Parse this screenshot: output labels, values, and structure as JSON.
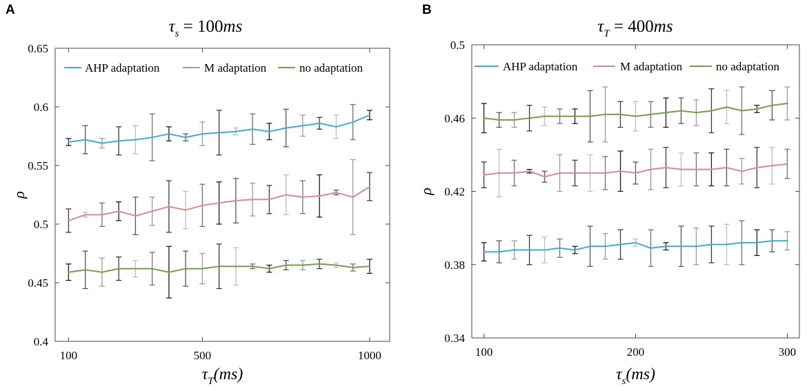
{
  "chart_data": [
    {
      "type": "line",
      "panel_label": "A",
      "title": {
        "main": "τ",
        "sub": "s",
        "rest": " = 100",
        "unit": "ms"
      },
      "xlabel": {
        "main": "τ",
        "sub": "T",
        "rest": "(ms)"
      },
      "ylabel": "ρ",
      "xlim": [
        60,
        1060
      ],
      "ylim": [
        0.4,
        0.65
      ],
      "xticks": [
        100,
        500,
        1000
      ],
      "yticks": [
        0.4,
        0.45,
        0.5,
        0.55,
        0.6,
        0.65
      ],
      "ytick_labels": [
        "0.4",
        "0.45",
        "0.5",
        "0.55",
        "0.6",
        "0.65"
      ],
      "legend": "top",
      "x": [
        100,
        150,
        200,
        250,
        300,
        350,
        400,
        450,
        500,
        550,
        600,
        650,
        700,
        750,
        800,
        850,
        900,
        950,
        1000
      ],
      "series": [
        {
          "name": "AHP adaptation",
          "color": "#46a9cc",
          "values": [
            0.57,
            0.572,
            0.569,
            0.571,
            0.572,
            0.574,
            0.577,
            0.574,
            0.577,
            0.578,
            0.579,
            0.581,
            0.579,
            0.582,
            0.584,
            0.586,
            0.583,
            0.587,
            0.593
          ],
          "errors": [
            0.003,
            0.012,
            0.004,
            0.012,
            0.012,
            0.02,
            0.006,
            0.003,
            0.01,
            0.019,
            0.003,
            0.013,
            0.007,
            0.016,
            0.009,
            0.005,
            0.01,
            0.015,
            0.004
          ]
        },
        {
          "name": "M adaptation",
          "color": "#d98a8a",
          "values": [
            0.503,
            0.508,
            0.508,
            0.511,
            0.507,
            0.511,
            0.515,
            0.512,
            0.516,
            0.518,
            0.52,
            0.521,
            0.521,
            0.525,
            0.523,
            0.524,
            0.527,
            0.523,
            0.532
          ],
          "errors": [
            0.01,
            0.002,
            0.01,
            0.008,
            0.016,
            0.012,
            0.022,
            0.016,
            0.018,
            0.018,
            0.019,
            0.014,
            0.012,
            0.017,
            0.014,
            0.018,
            0.002,
            0.032,
            0.012
          ]
        },
        {
          "name": "no adaptation",
          "color": "#72a046",
          "values": [
            0.459,
            0.461,
            0.459,
            0.462,
            0.462,
            0.462,
            0.459,
            0.462,
            0.462,
            0.464,
            0.464,
            0.464,
            0.462,
            0.465,
            0.465,
            0.466,
            0.465,
            0.463,
            0.464
          ],
          "errors": [
            0.007,
            0.016,
            0.012,
            0.01,
            0.007,
            0.014,
            0.022,
            0.015,
            0.013,
            0.019,
            0.016,
            0.002,
            0.003,
            0.004,
            0.004,
            0.004,
            0.002,
            0.003,
            0.006
          ]
        }
      ]
    },
    {
      "type": "line",
      "panel_label": "B",
      "title": {
        "main": "τ",
        "sub": "T",
        "rest": " = 400",
        "unit": "ms"
      },
      "xlabel": {
        "main": "τ",
        "sub": "s",
        "rest": "(ms)"
      },
      "ylabel": "ρ",
      "xlim": [
        92,
        308
      ],
      "ylim": [
        0.34,
        0.5
      ],
      "xticks": [
        100,
        200,
        300
      ],
      "yticks": [
        0.34,
        0.38,
        0.42,
        0.46,
        0.5
      ],
      "ytick_labels": [
        "0.34",
        "0.38",
        "0.42",
        "0.46",
        "0.5"
      ],
      "legend": "top",
      "x": [
        100,
        110,
        120,
        130,
        140,
        150,
        160,
        170,
        180,
        190,
        200,
        210,
        220,
        230,
        240,
        250,
        260,
        270,
        280,
        290,
        300
      ],
      "series": [
        {
          "name": "AHP adaptation",
          "color": "#46a9cc",
          "values": [
            0.387,
            0.387,
            0.388,
            0.388,
            0.388,
            0.389,
            0.388,
            0.39,
            0.39,
            0.391,
            0.392,
            0.389,
            0.39,
            0.39,
            0.39,
            0.391,
            0.391,
            0.392,
            0.392,
            0.393,
            0.393
          ],
          "errors": [
            0.005,
            0.006,
            0.005,
            0.008,
            0.007,
            0.005,
            0.002,
            0.011,
            0.007,
            0.008,
            0.002,
            0.01,
            0.002,
            0.011,
            0.01,
            0.01,
            0.011,
            0.012,
            0.007,
            0.006,
            0.005
          ]
        },
        {
          "name": "M adaptation",
          "color": "#d98a8a",
          "values": [
            0.429,
            0.43,
            0.43,
            0.431,
            0.428,
            0.43,
            0.43,
            0.43,
            0.43,
            0.431,
            0.43,
            0.432,
            0.433,
            0.432,
            0.432,
            0.432,
            0.433,
            0.431,
            0.433,
            0.434,
            0.435
          ],
          "errors": [
            0.007,
            0.013,
            0.007,
            0.001,
            0.003,
            0.01,
            0.007,
            0.01,
            0.009,
            0.011,
            0.006,
            0.011,
            0.011,
            0.009,
            0.009,
            0.009,
            0.01,
            0.007,
            0.011,
            0.01,
            0.008
          ]
        },
        {
          "name": "no adaptation",
          "color": "#72a046",
          "values": [
            0.46,
            0.459,
            0.459,
            0.46,
            0.461,
            0.461,
            0.461,
            0.461,
            0.462,
            0.462,
            0.461,
            0.462,
            0.463,
            0.464,
            0.463,
            0.464,
            0.466,
            0.464,
            0.465,
            0.467,
            0.468
          ],
          "errors": [
            0.008,
            0.004,
            0.004,
            0.007,
            0.005,
            0.004,
            0.004,
            0.014,
            0.015,
            0.007,
            0.008,
            0.007,
            0.008,
            0.007,
            0.007,
            0.012,
            0.009,
            0.013,
            0.002,
            0.008,
            0.009
          ]
        }
      ]
    }
  ]
}
